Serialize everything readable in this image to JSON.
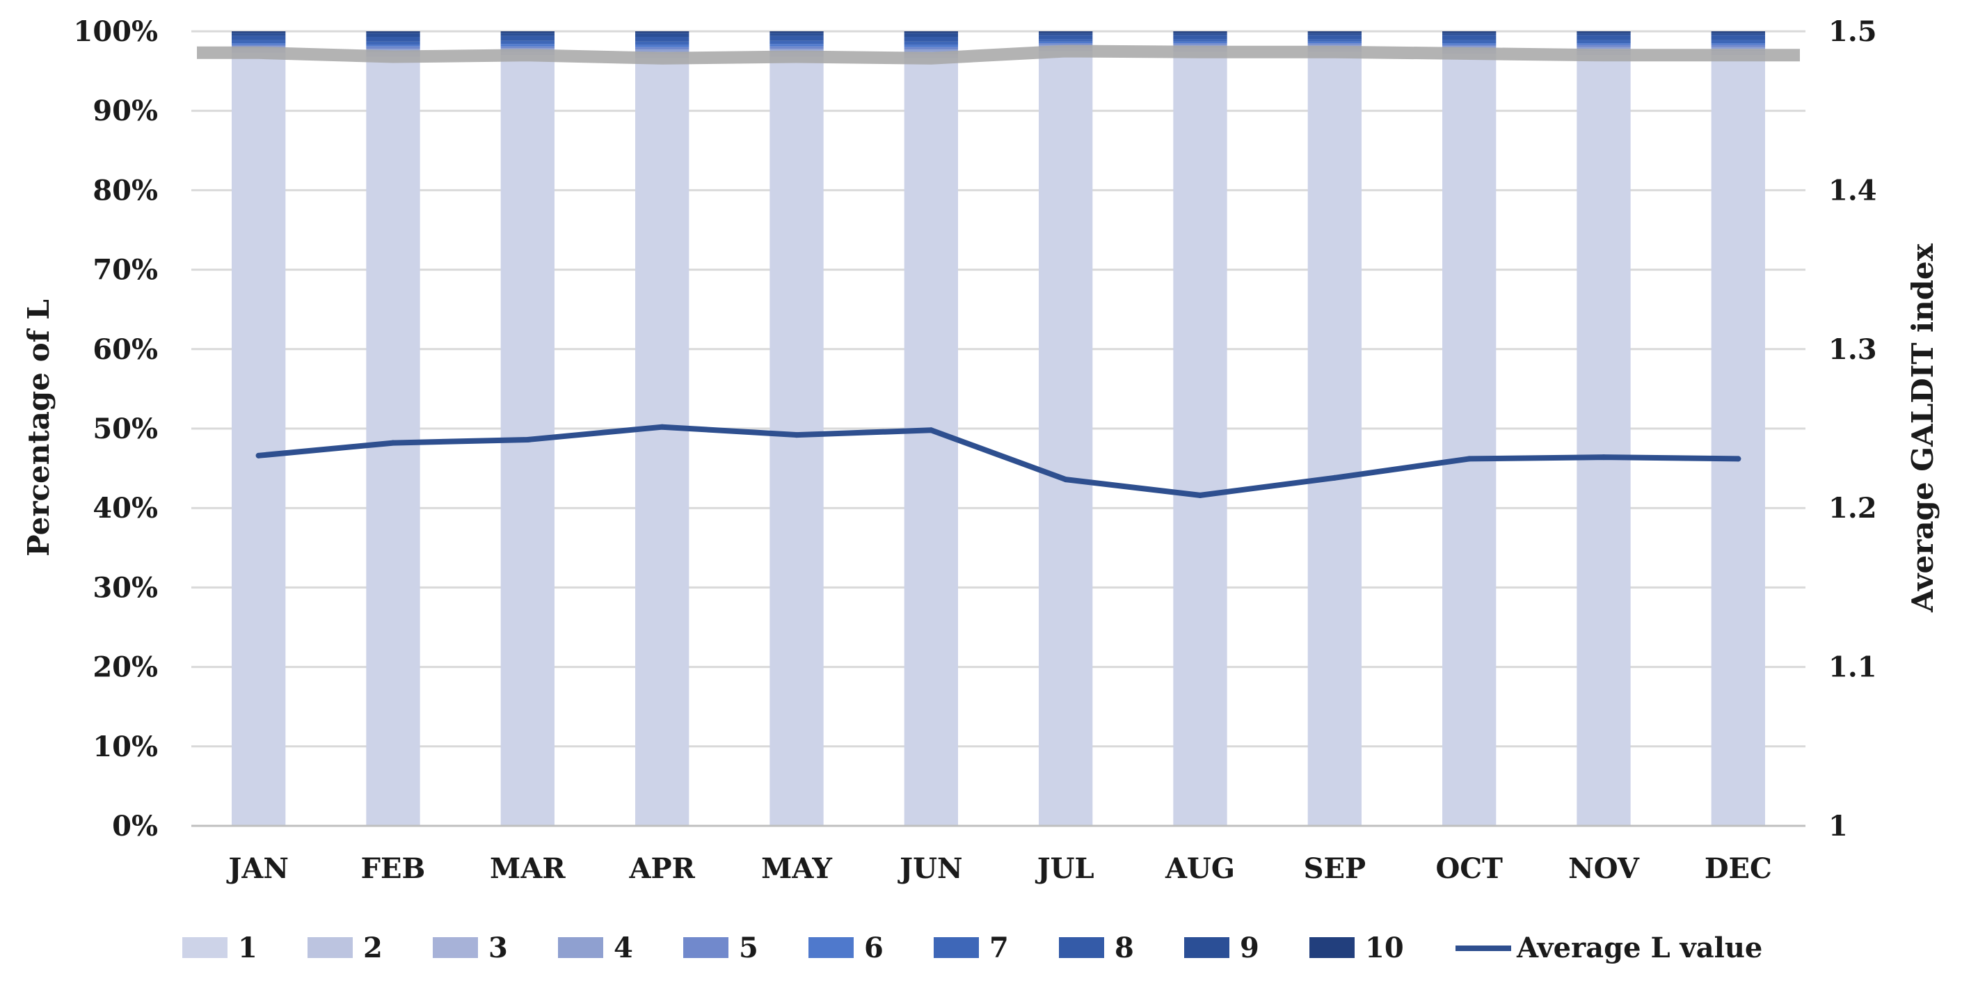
{
  "chart_data": {
    "type": "bar",
    "stacked": true,
    "percent_stacked": true,
    "categories": [
      "JAN",
      "FEB",
      "MAR",
      "APR",
      "MAY",
      "JUN",
      "JUL",
      "AUG",
      "SEP",
      "OCT",
      "NOV",
      "DEC"
    ],
    "series": [
      {
        "name": "1",
        "color": "#cdd3e8",
        "values": [
          97.3,
          96.8,
          97.0,
          96.6,
          96.8,
          96.6,
          97.5,
          97.4,
          97.4,
          97.2,
          97.0,
          97.0
        ]
      },
      {
        "name": "2",
        "color": "#bcc4e0",
        "values": [
          0.4,
          0.5,
          0.4,
          0.5,
          0.5,
          0.5,
          0.4,
          0.5,
          0.4,
          0.4,
          0.5,
          0.5
        ]
      },
      {
        "name": "3",
        "color": "#a7b2d8",
        "values": [
          0.2,
          0.3,
          0.3,
          0.3,
          0.3,
          0.3,
          0.2,
          0.2,
          0.3,
          0.3,
          0.3,
          0.3
        ]
      },
      {
        "name": "4",
        "color": "#8fa0d0",
        "values": [
          0.2,
          0.2,
          0.2,
          0.3,
          0.2,
          0.3,
          0.2,
          0.2,
          0.2,
          0.2,
          0.2,
          0.2
        ]
      },
      {
        "name": "5",
        "color": "#7189cc",
        "values": [
          0.2,
          0.3,
          0.2,
          0.3,
          0.3,
          0.3,
          0.2,
          0.2,
          0.2,
          0.2,
          0.3,
          0.3
        ]
      },
      {
        "name": "6",
        "color": "#4f79cc",
        "values": [
          0.2,
          0.2,
          0.3,
          0.3,
          0.3,
          0.3,
          0.2,
          0.2,
          0.2,
          0.2,
          0.2,
          0.2
        ]
      },
      {
        "name": "7",
        "color": "#3e67b8",
        "values": [
          0.4,
          0.4,
          0.4,
          0.4,
          0.4,
          0.4,
          0.3,
          0.3,
          0.3,
          0.4,
          0.4,
          0.4
        ]
      },
      {
        "name": "8",
        "color": "#345ba8",
        "values": [
          0.5,
          0.6,
          0.6,
          0.6,
          0.6,
          0.6,
          0.5,
          0.5,
          0.5,
          0.6,
          0.6,
          0.6
        ]
      },
      {
        "name": "9",
        "color": "#2b4f96",
        "values": [
          0.4,
          0.5,
          0.4,
          0.5,
          0.4,
          0.5,
          0.3,
          0.3,
          0.3,
          0.3,
          0.3,
          0.3
        ]
      },
      {
        "name": "10",
        "color": "#223f7d",
        "values": [
          0.2,
          0.2,
          0.2,
          0.2,
          0.2,
          0.2,
          0.2,
          0.2,
          0.2,
          0.2,
          0.2,
          0.2
        ]
      }
    ],
    "line_series": {
      "name": "Average L value",
      "color": "#2e4f8f",
      "axis": "right",
      "values": [
        1.233,
        1.241,
        1.243,
        1.251,
        1.246,
        1.249,
        1.218,
        1.208,
        1.219,
        1.231,
        1.232,
        1.231
      ]
    },
    "ylabel": "Percentage of L",
    "y2label": "Average GALDIT index",
    "ylim": [
      0,
      100
    ],
    "y2lim": [
      1,
      1.5
    ],
    "yticks": [
      "0%",
      "10%",
      "20%",
      "30%",
      "40%",
      "50%",
      "60%",
      "70%",
      "80%",
      "90%",
      "100%"
    ],
    "y2ticks": [
      "1",
      "1.1",
      "1.2",
      "1.3",
      "1.4",
      "1.5"
    ],
    "grid": true,
    "legend": "bottom"
  }
}
